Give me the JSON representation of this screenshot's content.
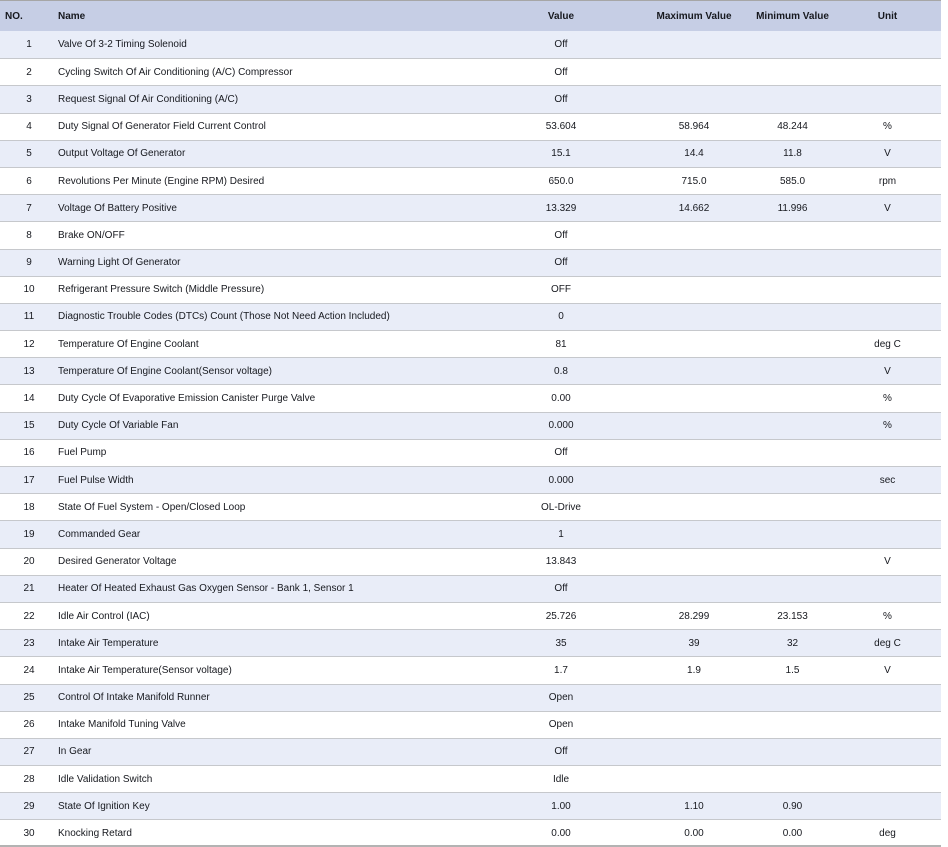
{
  "colors": {
    "header_bg": "#c6cee5",
    "row_alt_bg": "#e9edf8",
    "divider": "#c6c8cc",
    "top_border": "#a6a6a6",
    "bottom_border": "#b3b3b3",
    "text_color": "#17191f"
  },
  "table": {
    "columns": [
      "NO.",
      "Name",
      "Value",
      "Maximum Value",
      "Minimum Value",
      "Unit"
    ],
    "rows": [
      {
        "no": "1",
        "name": "Valve Of 3-2 Timing Solenoid",
        "value": "Off",
        "max": "",
        "min": "",
        "unit": ""
      },
      {
        "no": "2",
        "name": "Cycling Switch Of Air Conditioning (A/C) Compressor",
        "value": "Off",
        "max": "",
        "min": "",
        "unit": ""
      },
      {
        "no": "3",
        "name": "Request Signal Of Air Conditioning (A/C)",
        "value": "Off",
        "max": "",
        "min": "",
        "unit": ""
      },
      {
        "no": "4",
        "name": "Duty Signal Of Generator Field Current Control",
        "value": "53.604",
        "max": "58.964",
        "min": "48.244",
        "unit": "%"
      },
      {
        "no": "5",
        "name": "Output Voltage Of Generator",
        "value": "15.1",
        "max": "14.4",
        "min": "11.8",
        "unit": "V"
      },
      {
        "no": "6",
        "name": "Revolutions Per Minute (Engine RPM) Desired",
        "value": "650.0",
        "max": "715.0",
        "min": "585.0",
        "unit": "rpm"
      },
      {
        "no": "7",
        "name": "Voltage Of Battery Positive",
        "value": "13.329",
        "max": "14.662",
        "min": "11.996",
        "unit": "V"
      },
      {
        "no": "8",
        "name": "Brake ON/OFF",
        "value": "Off",
        "max": "",
        "min": "",
        "unit": ""
      },
      {
        "no": "9",
        "name": "Warning Light Of Generator",
        "value": "Off",
        "max": "",
        "min": "",
        "unit": ""
      },
      {
        "no": "10",
        "name": "Refrigerant Pressure Switch (Middle Pressure)",
        "value": "OFF",
        "max": "",
        "min": "",
        "unit": ""
      },
      {
        "no": "11",
        "name": "Diagnostic Trouble Codes (DTCs) Count (Those Not Need Action Included)",
        "value": "0",
        "max": "",
        "min": "",
        "unit": ""
      },
      {
        "no": "12",
        "name": "Temperature Of Engine Coolant",
        "value": "81",
        "max": "",
        "min": "",
        "unit": "deg C"
      },
      {
        "no": "13",
        "name": "Temperature Of Engine Coolant(Sensor voltage)",
        "value": "0.8",
        "max": "",
        "min": "",
        "unit": "V"
      },
      {
        "no": "14",
        "name": "Duty Cycle Of Evaporative Emission Canister Purge Valve",
        "value": "0.00",
        "max": "",
        "min": "",
        "unit": "%"
      },
      {
        "no": "15",
        "name": "Duty Cycle Of Variable Fan",
        "value": "0.000",
        "max": "",
        "min": "",
        "unit": "%"
      },
      {
        "no": "16",
        "name": "Fuel Pump",
        "value": "Off",
        "max": "",
        "min": "",
        "unit": ""
      },
      {
        "no": "17",
        "name": "Fuel Pulse Width",
        "value": "0.000",
        "max": "",
        "min": "",
        "unit": "sec"
      },
      {
        "no": "18",
        "name": "State Of Fuel System - Open/Closed Loop",
        "value": "OL-Drive",
        "max": "",
        "min": "",
        "unit": ""
      },
      {
        "no": "19",
        "name": "Commanded Gear",
        "value": "1",
        "max": "",
        "min": "",
        "unit": ""
      },
      {
        "no": "20",
        "name": "Desired Generator Voltage",
        "value": "13.843",
        "max": "",
        "min": "",
        "unit": "V"
      },
      {
        "no": "21",
        "name": "Heater Of Heated Exhaust Gas Oxygen Sensor - Bank 1, Sensor 1",
        "value": "Off",
        "max": "",
        "min": "",
        "unit": ""
      },
      {
        "no": "22",
        "name": "Idle Air Control (IAC)",
        "value": "25.726",
        "max": "28.299",
        "min": "23.153",
        "unit": "%"
      },
      {
        "no": "23",
        "name": "Intake Air Temperature",
        "value": "35",
        "max": "39",
        "min": "32",
        "unit": "deg C"
      },
      {
        "no": "24",
        "name": "Intake Air Temperature(Sensor voltage)",
        "value": "1.7",
        "max": "1.9",
        "min": "1.5",
        "unit": "V"
      },
      {
        "no": "25",
        "name": "Control Of Intake Manifold Runner",
        "value": "Open",
        "max": "",
        "min": "",
        "unit": ""
      },
      {
        "no": "26",
        "name": "Intake Manifold Tuning Valve",
        "value": "Open",
        "max": "",
        "min": "",
        "unit": ""
      },
      {
        "no": "27",
        "name": "In Gear",
        "value": "Off",
        "max": "",
        "min": "",
        "unit": ""
      },
      {
        "no": "28",
        "name": "Idle Validation Switch",
        "value": "Idle",
        "max": "",
        "min": "",
        "unit": ""
      },
      {
        "no": "29",
        "name": "State Of Ignition Key",
        "value": "1.00",
        "max": "1.10",
        "min": "0.90",
        "unit": ""
      },
      {
        "no": "30",
        "name": "Knocking Retard",
        "value": "0.00",
        "max": "0.00",
        "min": "0.00",
        "unit": "deg"
      }
    ]
  }
}
